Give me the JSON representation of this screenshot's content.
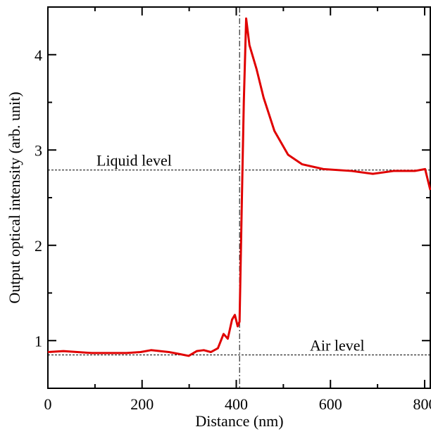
{
  "chart_data": {
    "type": "line",
    "xlabel": "Distance (nm)",
    "ylabel": "Output optical intensity (arb. unit)",
    "xlim": [
      0,
      812
    ],
    "ylim": [
      0.5,
      4.5
    ],
    "xticks": [
      0,
      200,
      400,
      600,
      800
    ],
    "yticks": [
      1,
      2,
      3,
      4
    ],
    "xminorticks": [
      100,
      300,
      500,
      700
    ],
    "yminorticks": [
      1.5,
      2.5,
      3.5
    ],
    "hlines": [
      {
        "value": 2.79,
        "label": "Liquid level"
      },
      {
        "value": 0.85,
        "label": "Air level"
      }
    ],
    "vlines": [
      407
    ],
    "series": [
      {
        "color": "#e00000",
        "x": [
          0,
          33,
          93,
          167,
          197,
          219,
          257,
          279,
          299,
          316,
          331,
          346,
          361,
          373,
          382,
          391,
          397,
          403,
          407,
          412,
          416,
          421,
          428,
          443,
          458,
          481,
          510,
          540,
          585,
          645,
          690,
          734,
          779,
          801,
          812
        ],
        "values": [
          0.88,
          0.89,
          0.87,
          0.87,
          0.88,
          0.9,
          0.88,
          0.86,
          0.84,
          0.89,
          0.9,
          0.88,
          0.92,
          1.07,
          1.02,
          1.22,
          1.27,
          1.15,
          1.2,
          2.5,
          3.5,
          4.38,
          4.1,
          3.85,
          3.55,
          3.2,
          2.95,
          2.85,
          2.8,
          2.78,
          2.75,
          2.78,
          2.78,
          2.8,
          2.58
        ]
      }
    ]
  }
}
